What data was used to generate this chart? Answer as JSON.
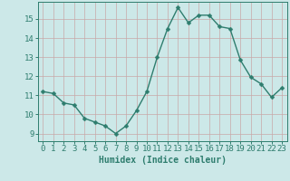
{
  "x": [
    0,
    1,
    2,
    3,
    4,
    5,
    6,
    7,
    8,
    9,
    10,
    11,
    12,
    13,
    14,
    15,
    16,
    17,
    18,
    19,
    20,
    21,
    22,
    23
  ],
  "y": [
    11.2,
    11.1,
    10.6,
    10.5,
    9.8,
    9.6,
    9.4,
    9.0,
    9.4,
    10.2,
    11.2,
    13.0,
    14.5,
    15.6,
    14.8,
    15.2,
    15.2,
    14.6,
    14.5,
    12.85,
    11.95,
    11.6,
    10.9,
    11.4
  ],
  "line_color": "#2e7d6e",
  "marker": "D",
  "marker_size": 2.5,
  "line_width": 1.0,
  "bg_color": "#cce8e8",
  "grid_color_major": "#c8a8a8",
  "grid_color_minor": "#c8a8a8",
  "xlabel": "Humidex (Indice chaleur)",
  "xlabel_fontsize": 7,
  "tick_fontsize": 6.5,
  "xlim": [
    -0.5,
    23.5
  ],
  "ylim": [
    8.6,
    15.9
  ],
  "yticks": [
    9,
    10,
    11,
    12,
    13,
    14,
    15
  ],
  "xticks": [
    0,
    1,
    2,
    3,
    4,
    5,
    6,
    7,
    8,
    9,
    10,
    11,
    12,
    13,
    14,
    15,
    16,
    17,
    18,
    19,
    20,
    21,
    22,
    23
  ]
}
